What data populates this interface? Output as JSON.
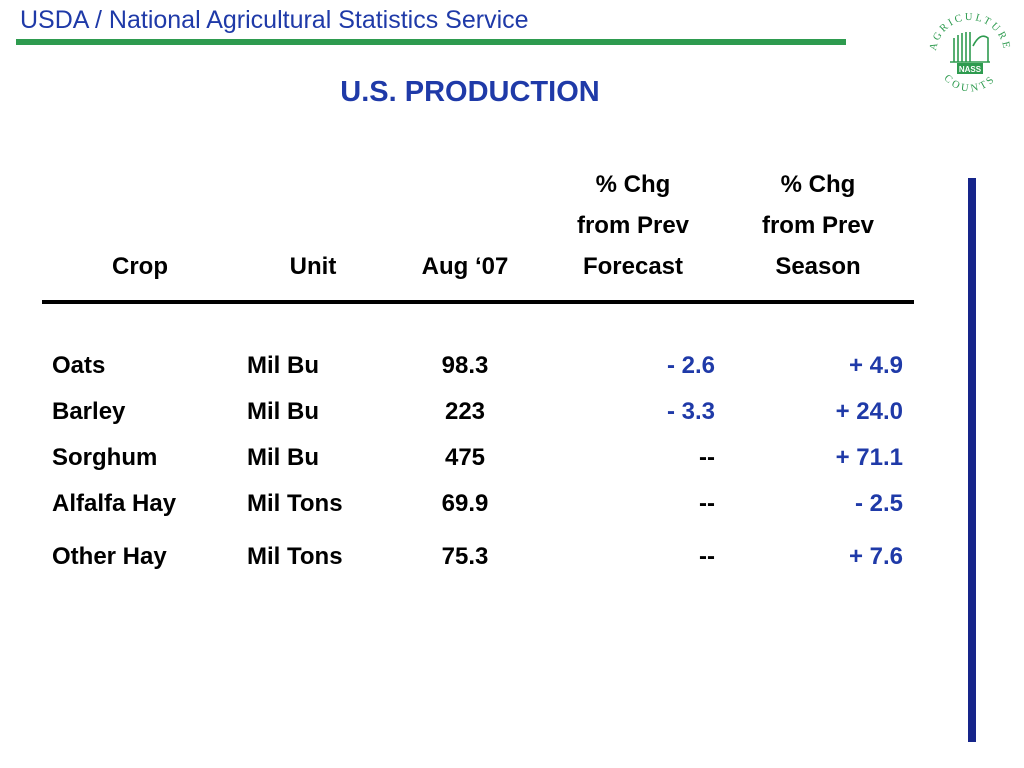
{
  "header": {
    "org": "USDA / National Agricultural Statistics Service",
    "rule_color": "#2e9b4f",
    "text_color": "#1f3aa8"
  },
  "logo": {
    "icon": "agriculture-counts-nass-seal",
    "top_text": "AGRICULTURE",
    "bottom_text": "COUNTS",
    "badge": "NASS",
    "color": "#2e9b4f"
  },
  "title": "U.S. PRODUCTION",
  "accent_bar_color": "#16258a",
  "table": {
    "columns": [
      {
        "line1": "",
        "line2": "",
        "line3": "Crop"
      },
      {
        "line1": "",
        "line2": "",
        "line3": "Unit"
      },
      {
        "line1": "",
        "line2": "",
        "line3": "Aug ‘07"
      },
      {
        "line1": "% Chg",
        "line2": "from Prev",
        "line3": "Forecast"
      },
      {
        "line1": "% Chg",
        "line2": "from Prev",
        "line3": "Season"
      }
    ],
    "rows": [
      {
        "crop": "Oats",
        "unit": "Mil Bu",
        "aug": "98.3",
        "forecast": "- 2.6",
        "season": "+ 4.9"
      },
      {
        "crop": "Barley",
        "unit": "Mil Bu",
        "aug": "223",
        "forecast": "- 3.3",
        "season": "+ 24.0"
      },
      {
        "crop": "Sorghum",
        "unit": "Mil Bu",
        "aug": "475",
        "forecast": "--",
        "season": "+ 71.1"
      },
      {
        "crop": "Alfalfa Hay",
        "unit": "Mil Tons",
        "aug": "69.9",
        "forecast": "--",
        "season": "- 2.5"
      },
      {
        "crop": "Other Hay",
        "unit": "Mil Tons",
        "aug": "75.3",
        "forecast": "--",
        "season": "+ 7.6"
      }
    ],
    "change_color": "#1f3aa8"
  }
}
